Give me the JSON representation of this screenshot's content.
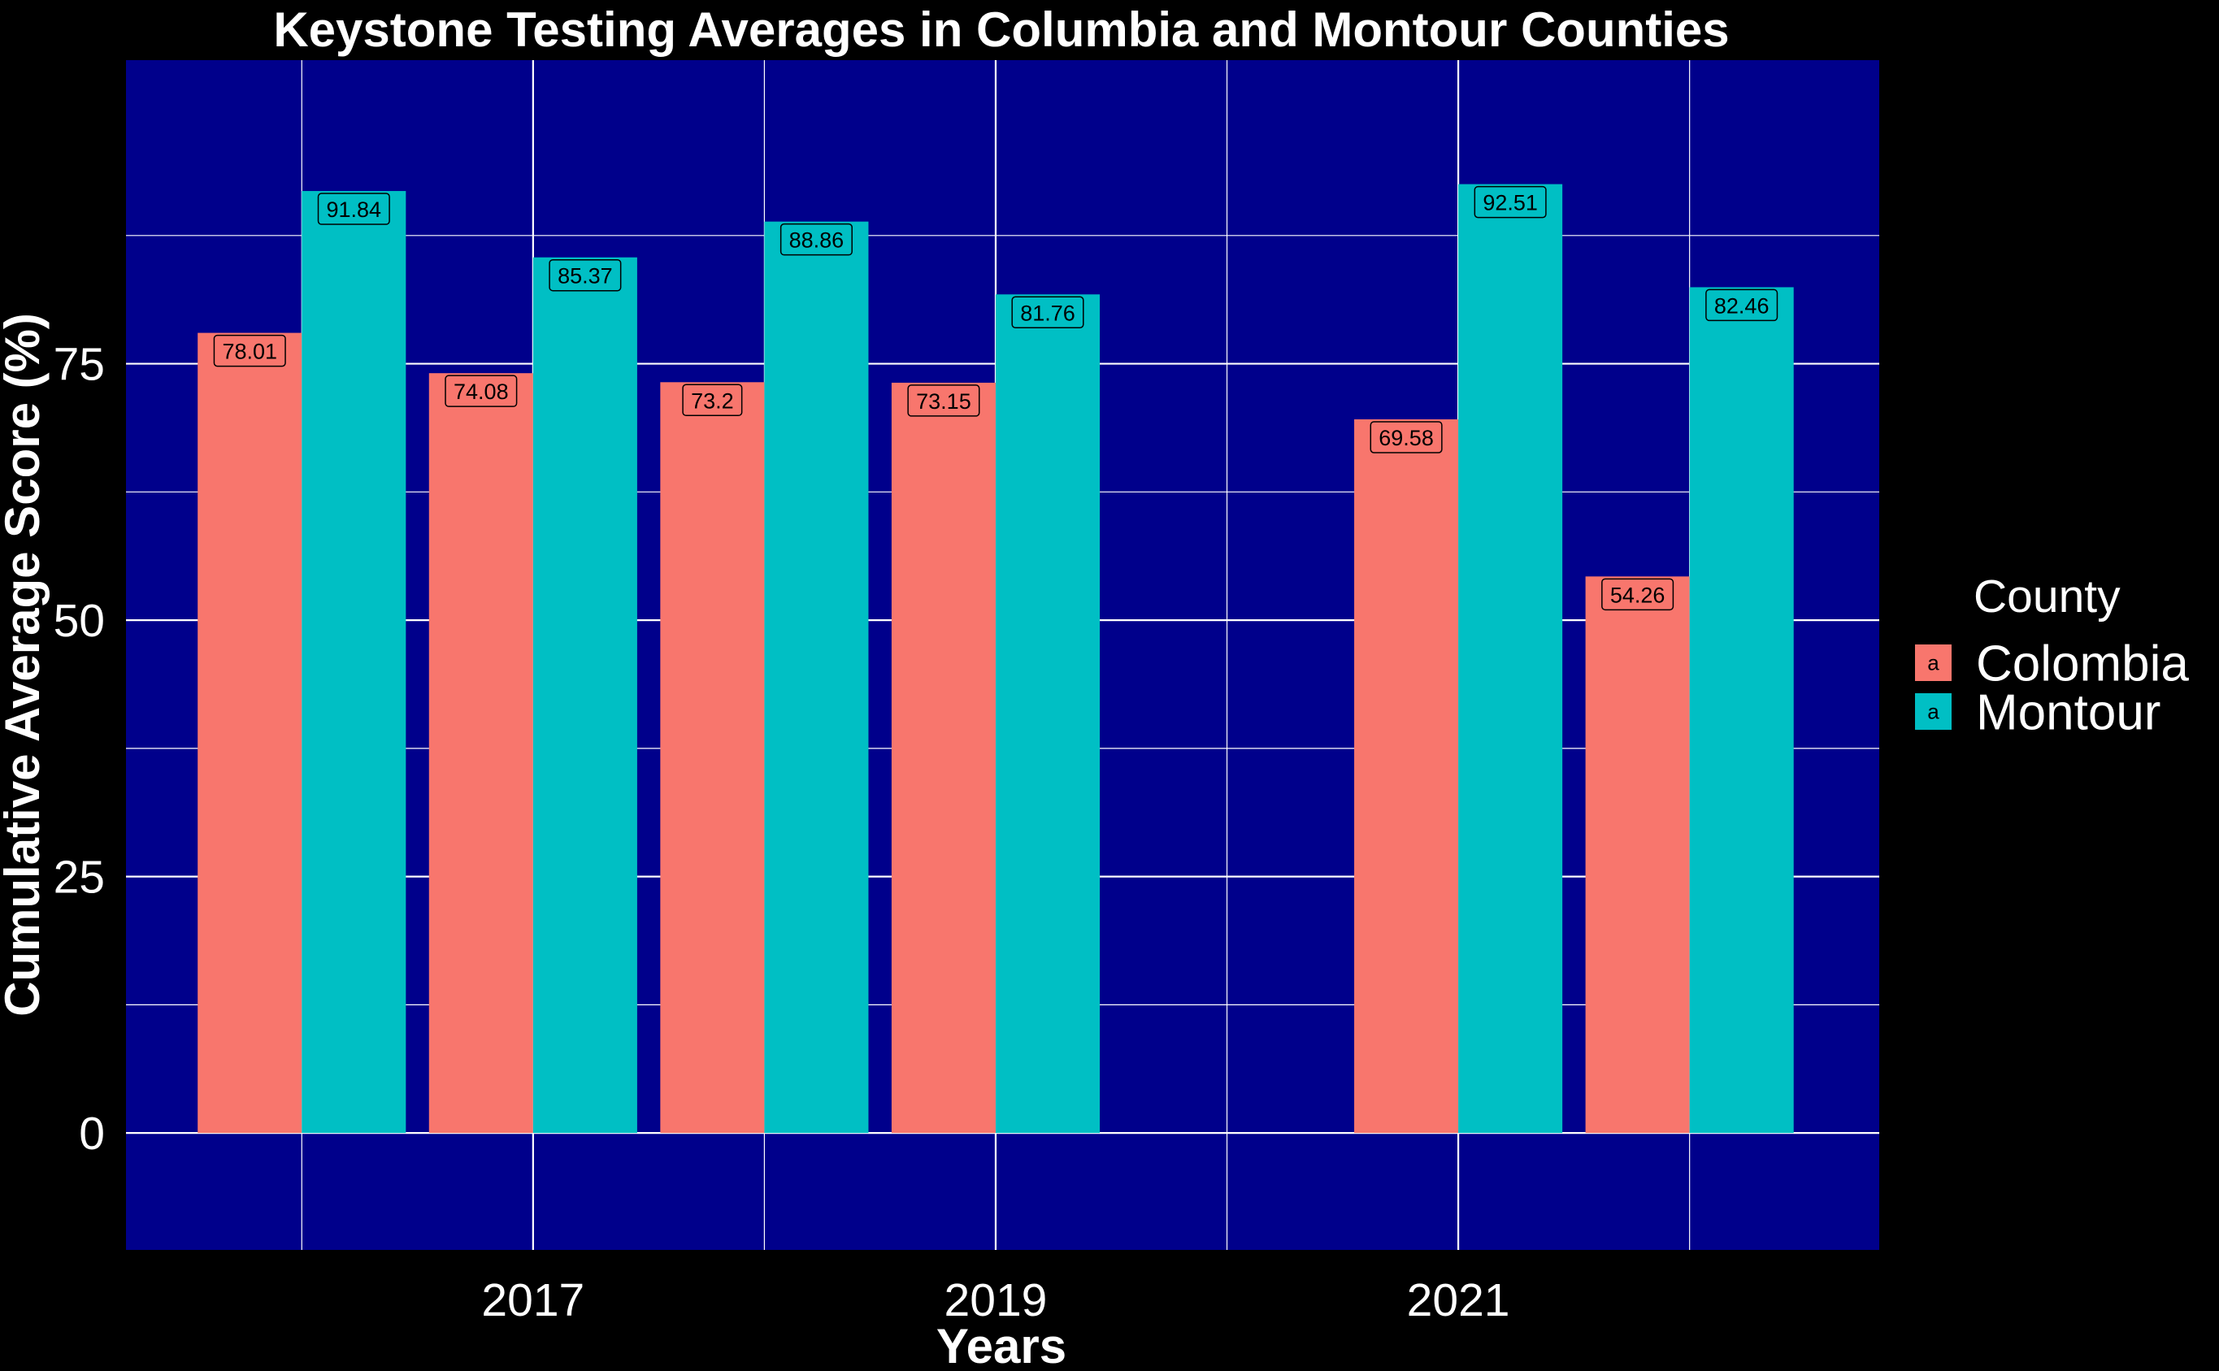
{
  "chart_data": {
    "type": "bar",
    "title": "Keystone Testing Averages in Columbia and Montour Counties",
    "xlabel": "Years",
    "ylabel": "Cumulative Average Score (%)",
    "x": [
      2016,
      2017,
      2018,
      2019,
      2021,
      2022
    ],
    "x_ticks": [
      2017,
      2019,
      2021
    ],
    "x_tick_labels": [
      "2017",
      "2019",
      "2021"
    ],
    "xlim": [
      2015.24,
      2022.82
    ],
    "ylim": [
      -11.4,
      104.6
    ],
    "y_ticks": [
      0,
      25,
      50,
      75
    ],
    "y_tick_labels": [
      "0",
      "25",
      "50",
      "75"
    ],
    "series": [
      {
        "name": "Colombia",
        "color": "#F8766D",
        "values": [
          78.01,
          74.08,
          73.2,
          73.15,
          69.58,
          54.26
        ],
        "labels": [
          "78.01",
          "74.08",
          "73.2",
          "73.15",
          "69.58",
          "54.26"
        ]
      },
      {
        "name": "Montour",
        "color": "#00BFC4",
        "values": [
          91.84,
          85.37,
          88.86,
          81.76,
          92.51,
          82.46
        ],
        "labels": [
          "91.84",
          "85.37",
          "88.86",
          "81.76",
          "92.51",
          "82.46"
        ]
      }
    ],
    "legend": {
      "title": "County",
      "position": "right",
      "key_glyph": "a"
    },
    "grid": true,
    "panel_background": "#00008B",
    "page_background": "#000000",
    "gridline_color": "#FFFFFF"
  }
}
